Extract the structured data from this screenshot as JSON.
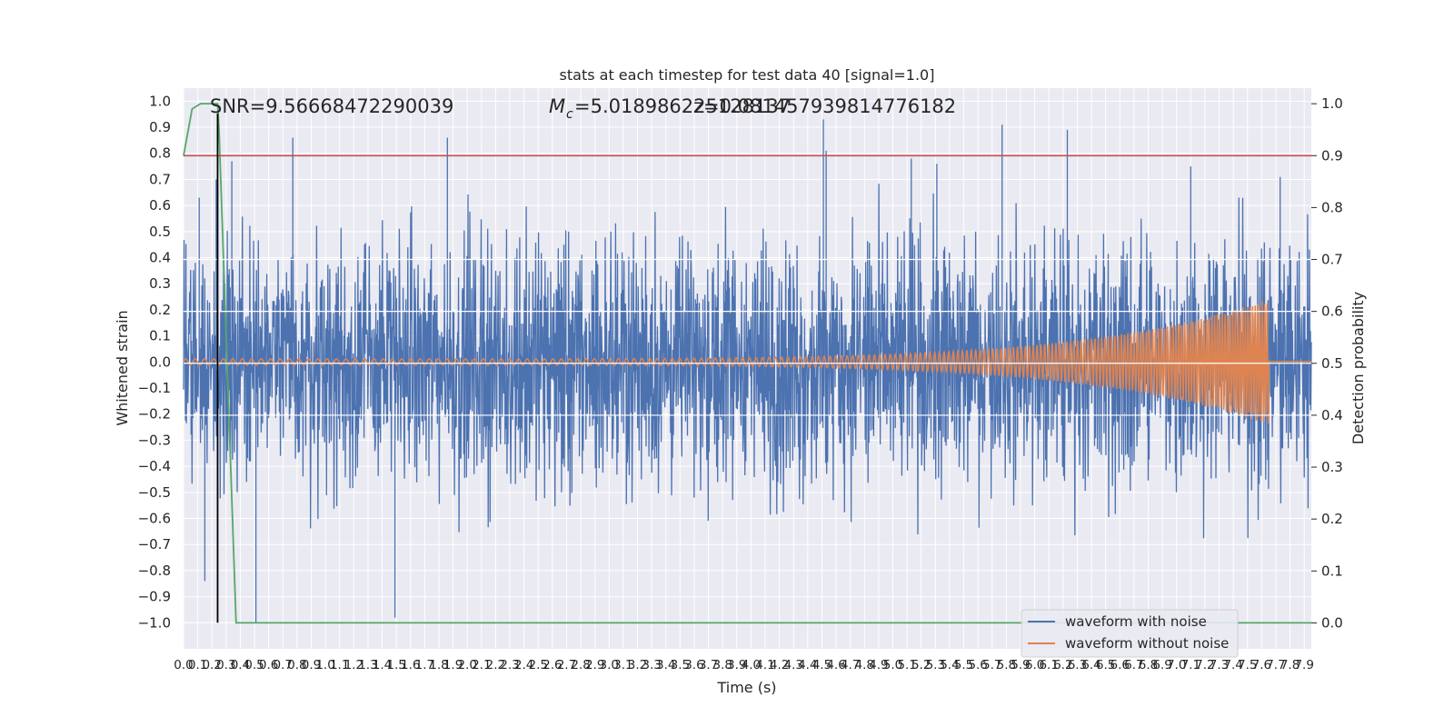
{
  "chart_data": {
    "type": "line",
    "title": "stats at each timestep for test data 40 [signal=1.0]",
    "xlabel": "Time (s)",
    "ylabel": "Whitened strain",
    "y2label": "Detection probability",
    "xlim": [
      0.0,
      7.95
    ],
    "ylim": [
      -1.1,
      1.05
    ],
    "y2lim": [
      -0.05,
      1.03
    ],
    "x_ticks": [
      "0.0",
      "0.1",
      "0.2",
      "0.3",
      "0.4",
      "0.5",
      "0.6",
      "0.7",
      "0.8",
      "0.9",
      "1.0",
      "1.1",
      "1.2",
      "1.3",
      "1.4",
      "1.5",
      "1.6",
      "1.7",
      "1.8",
      "1.9",
      "2.0",
      "2.1",
      "2.2",
      "2.3",
      "2.4",
      "2.5",
      "2.6",
      "2.7",
      "2.8",
      "2.9",
      "3.0",
      "3.1",
      "3.2",
      "3.3",
      "3.4",
      "3.5",
      "3.6",
      "3.7",
      "3.8",
      "3.9",
      "4.0",
      "4.1",
      "4.2",
      "4.3",
      "4.4",
      "4.5",
      "4.6",
      "4.7",
      "4.8",
      "4.9",
      "5.0",
      "5.1",
      "5.2",
      "5.3",
      "5.4",
      "5.5",
      "5.6",
      "5.7",
      "5.8",
      "5.9",
      "6.0",
      "6.1",
      "6.2",
      "6.3",
      "6.4",
      "6.5",
      "6.6",
      "6.7",
      "6.8",
      "6.9",
      "7.0",
      "7.1",
      "7.2",
      "7.3",
      "7.4",
      "7.5",
      "7.6",
      "7.7",
      "7.8",
      "7.9"
    ],
    "y_ticks": [
      "1.0",
      "0.9",
      "0.8",
      "0.7",
      "0.6",
      "0.5",
      "0.4",
      "0.3",
      "0.2",
      "0.1",
      "0.0",
      "−0.1",
      "−0.2",
      "−0.3",
      "−0.4",
      "−0.5",
      "−0.6",
      "−0.7",
      "−0.8",
      "−0.9",
      "−1.0"
    ],
    "y2_ticks": [
      "1.0",
      "0.9",
      "0.8",
      "0.7",
      "0.6",
      "0.5",
      "0.4",
      "0.3",
      "0.2",
      "0.1",
      "0.0"
    ],
    "annotations": {
      "snr": "SNR=9.56668472290039",
      "mc": "=5.018986225128137",
      "mc_symbol": "M",
      "mc_subscript": "c",
      "overlap": "z=0.0814579398147761​82"
    },
    "threshold": {
      "value": 0.9,
      "axis": "y2",
      "color": "#c44e52"
    },
    "marker_time": 0.24,
    "series": [
      {
        "name": "waveform with noise",
        "color": "#4c72b0",
        "description_values": {
          "typical_amplitude": 0.35,
          "spike_peaks": [
            [
              0.11,
              0.63
            ],
            [
              0.15,
              -0.84
            ],
            [
              0.23,
              0.7
            ],
            [
              0.34,
              0.77
            ],
            [
              0.51,
              -1.0
            ],
            [
              0.77,
              0.86
            ],
            [
              1.49,
              -0.98
            ],
            [
              1.86,
              0.86
            ],
            [
              4.51,
              0.93
            ],
            [
              4.53,
              0.81
            ],
            [
              5.13,
              0.78
            ],
            [
              5.31,
              0.76
            ],
            [
              5.77,
              0.91
            ],
            [
              6.23,
              0.89
            ],
            [
              7.1,
              0.75
            ],
            [
              7.73,
              0.71
            ]
          ]
        }
      },
      {
        "name": "waveform without noise",
        "color": "#dd8452",
        "chirp": {
          "start": 0.0,
          "merger_time": 7.65,
          "start_amplitude": 0.012,
          "peak_amplitude": 0.24,
          "start_cycles_per_s": 15,
          "end_cycles_per_s": 60
        }
      },
      {
        "name": "detection probability",
        "color": "#55a868",
        "axis": "y2",
        "x": [
          0.0,
          0.06,
          0.12,
          0.24,
          0.25,
          0.37,
          7.95
        ],
        "y": [
          0.9,
          0.99,
          1.0,
          1.0,
          0.95,
          0.0,
          0.0
        ]
      }
    ],
    "legend": {
      "placement": "lower-right",
      "entries": [
        "waveform with noise",
        "waveform without noise"
      ]
    },
    "grid": true
  }
}
